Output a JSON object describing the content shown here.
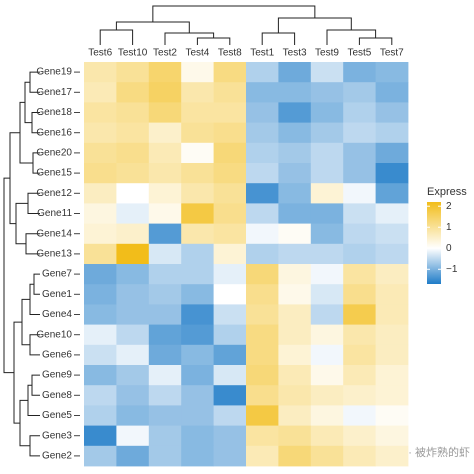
{
  "chart_data": {
    "type": "heatmap",
    "columns": [
      "Test6",
      "Test10",
      "Test2",
      "Test4",
      "Test8",
      "Test1",
      "Test3",
      "Test9",
      "Test5",
      "Test7"
    ],
    "rows": [
      "Gene19",
      "Gene17",
      "Gene18",
      "Gene16",
      "Gene20",
      "Gene15",
      "Gene12",
      "Gene11",
      "Gene14",
      "Gene13",
      "Gene7",
      "Gene1",
      "Gene4",
      "Gene10",
      "Gene6",
      "Gene9",
      "Gene8",
      "Gene5",
      "Gene3",
      "Gene2"
    ],
    "values": [
      [
        0.8,
        1.0,
        1.4,
        0.2,
        1.2,
        -0.6,
        -1.1,
        -0.4,
        -1.0,
        -0.9
      ],
      [
        0.7,
        1.2,
        1.5,
        0.8,
        1.0,
        -0.9,
        -0.9,
        -0.8,
        -0.7,
        -1.0
      ],
      [
        0.9,
        1.0,
        1.3,
        0.9,
        0.9,
        -0.8,
        -1.3,
        -0.9,
        -0.6,
        -0.8
      ],
      [
        0.8,
        0.9,
        0.5,
        1.0,
        1.1,
        -0.7,
        -0.9,
        -0.7,
        -0.5,
        -0.6
      ],
      [
        1.0,
        1.1,
        0.7,
        0.1,
        1.3,
        -0.6,
        -0.7,
        -0.5,
        -0.8,
        -1.1
      ],
      [
        1.1,
        1.0,
        0.8,
        1.0,
        1.2,
        -0.5,
        -0.8,
        -0.5,
        -0.8,
        -1.5
      ],
      [
        0.6,
        0.0,
        0.4,
        0.8,
        1.0,
        -1.4,
        -0.9,
        0.4,
        -0.1,
        -1.2
      ],
      [
        0.3,
        -0.2,
        0.2,
        1.8,
        1.1,
        -0.5,
        -1.0,
        -1.0,
        -0.4,
        -0.2
      ],
      [
        0.4,
        0.5,
        -1.3,
        0.8,
        0.9,
        -0.1,
        0.1,
        -0.9,
        -0.5,
        -0.4
      ],
      [
        1.0,
        2.2,
        -0.3,
        -0.6,
        0.4,
        -0.6,
        -0.5,
        -0.5,
        -0.6,
        -0.5
      ],
      [
        -1.1,
        -0.9,
        -0.6,
        -0.6,
        -0.2,
        1.3,
        0.3,
        -0.1,
        0.9,
        0.6
      ],
      [
        -1.0,
        -0.8,
        -0.7,
        -0.9,
        0.0,
        1.1,
        0.2,
        -0.3,
        1.1,
        0.7
      ],
      [
        -0.9,
        -0.8,
        -0.8,
        -1.4,
        -0.4,
        1.0,
        0.6,
        -0.5,
        1.7,
        0.7
      ],
      [
        -0.2,
        -0.5,
        -1.2,
        -1.3,
        -0.6,
        1.2,
        0.6,
        0.3,
        0.8,
        0.6
      ],
      [
        -0.4,
        -0.2,
        -1.1,
        -0.9,
        -1.2,
        1.2,
        0.4,
        -0.1,
        0.9,
        0.6
      ],
      [
        -0.9,
        -0.7,
        -0.2,
        -1.0,
        -0.3,
        1.3,
        0.7,
        0.2,
        0.7,
        0.4
      ],
      [
        -0.5,
        -0.8,
        -0.5,
        -0.8,
        -1.5,
        1.1,
        0.8,
        0.6,
        0.5,
        0.4
      ],
      [
        -0.6,
        -0.9,
        -0.8,
        -0.8,
        -0.5,
        1.8,
        0.6,
        0.3,
        -0.1,
        0.1
      ],
      [
        -1.5,
        -0.1,
        -0.7,
        -0.9,
        -0.8,
        0.9,
        1.0,
        0.7,
        0.5,
        0.3
      ],
      [
        -0.7,
        -1.1,
        -0.7,
        -0.9,
        -0.8,
        0.7,
        1.3,
        1.0,
        0.7,
        0.5
      ]
    ],
    "legend_title": "Express",
    "zlim": [
      -1.7,
      2.2
    ],
    "zticks": [
      2,
      1,
      0,
      {
        "value": -1,
        "label": "−1"
      }
    ],
    "colors": {
      "low": "#1f7cc8",
      "mid": "#ffffff",
      "high": "#f2bd1a"
    },
    "watermark": "公众号 · 被炸熟的虾"
  }
}
